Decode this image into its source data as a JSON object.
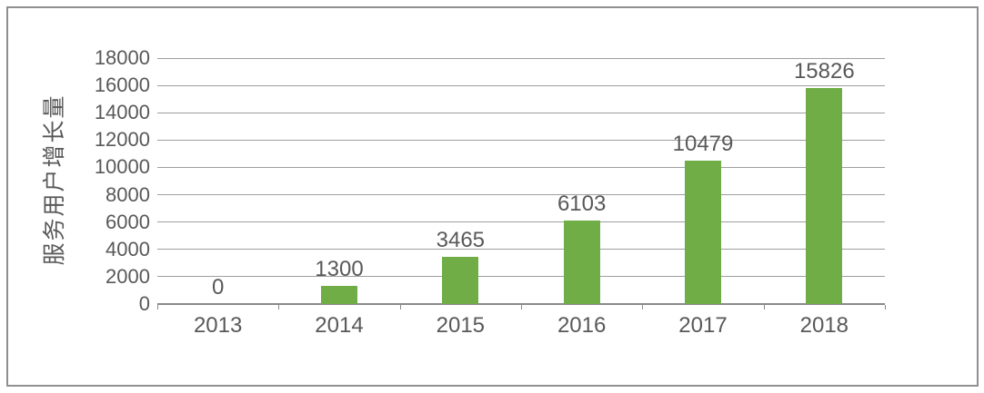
{
  "chart_data": {
    "type": "bar",
    "title": "",
    "xlabel": "",
    "ylabel": "服务用户增长量",
    "categories": [
      "2013",
      "2014",
      "2015",
      "2016",
      "2017",
      "2018"
    ],
    "values": [
      0,
      1300,
      3465,
      6103,
      10479,
      15826
    ],
    "data_labels_shown": true,
    "ylim": [
      0,
      18000
    ],
    "ytick_step": 2000,
    "yticks": [
      0,
      2000,
      4000,
      6000,
      8000,
      10000,
      12000,
      14000,
      16000,
      18000
    ],
    "grid": true,
    "legend": false,
    "colors": {
      "bar": "#70ad47",
      "text": "#595959",
      "gridline": "#9e9e9e",
      "axis": "#8a8a8a",
      "frame_border": "#909090",
      "background": "#ffffff"
    }
  }
}
